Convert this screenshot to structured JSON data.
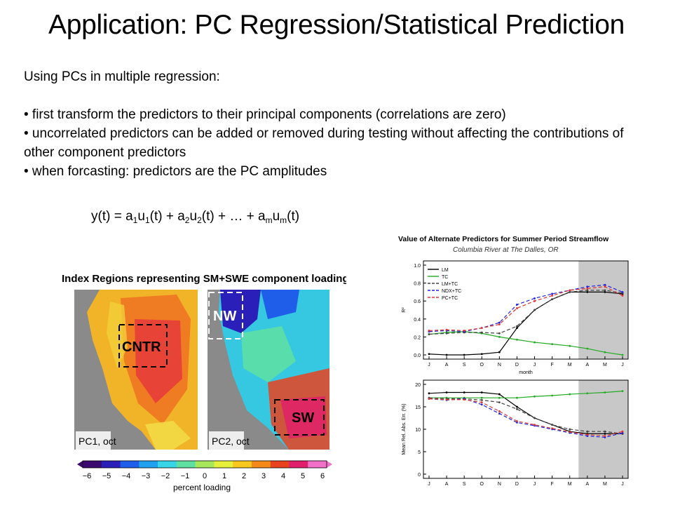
{
  "slide": {
    "title": "Application: PC Regression/Statistical Prediction",
    "intro": "Using PCs in multiple regression:",
    "bullets": [
      "• first transform the predictors to their principal components (correlations are zero)",
      "• uncorrelated predictors can be added or removed during testing without affecting the contributions of other component predictors",
      "• when forcasting: predictors are the PC amplitudes"
    ],
    "equation": {
      "lhs": "y(t) = ",
      "terms": [
        {
          "a": "a",
          "asub": "1",
          "u": "u",
          "usub": "1",
          "tail": "(t) + "
        },
        {
          "a": "a",
          "asub": "2",
          "u": "u",
          "usub": "2",
          "tail": "(t) + … + "
        },
        {
          "a": "a",
          "asub": "m",
          "u": "u",
          "usub": "m",
          "tail": "(t)"
        }
      ]
    }
  },
  "map_figure": {
    "title": "Index Regions representing SM+SWE component loadings",
    "maps": [
      {
        "label": "PC1, oct",
        "region": "CNTR"
      },
      {
        "label": "PC2, oct",
        "regions": [
          "NW",
          "SW"
        ]
      }
    ],
    "colorbar": {
      "ticks": [
        "−6",
        "−5",
        "−4",
        "−3",
        "−2",
        "−1",
        "0",
        "1",
        "2",
        "3",
        "4",
        "5",
        "6"
      ],
      "colors": [
        "#3b0a6e",
        "#2a1fb8",
        "#1f5ee8",
        "#22a0f0",
        "#36d6e6",
        "#5fe0a0",
        "#a6e85a",
        "#e6f03a",
        "#f8c81e",
        "#f58a1a",
        "#e8421e",
        "#e0206a",
        "#f070c8"
      ],
      "label": "percent loading"
    }
  },
  "chart_data": {
    "type": "line",
    "title": "Value of Alternate Predictors for Summer Period Streamflow",
    "subtitle": "Columbia River at The Dalles, OR",
    "x": [
      "J",
      "A",
      "S",
      "O",
      "N",
      "D",
      "J",
      "F",
      "M",
      "A",
      "M",
      "J"
    ],
    "xlabel": "month",
    "shaded_region": [
      "A",
      "J"
    ],
    "legend_position": "top-left",
    "panels": [
      {
        "ylabel": "R²",
        "ylim": [
          0,
          1.0
        ],
        "yticks": [
          "0.0",
          "0.2",
          "0.4",
          "0.6",
          "0.8",
          "1.0"
        ],
        "series": [
          {
            "name": "LM",
            "color": "#000000",
            "dash": "solid",
            "values": [
              0.01,
              0.0,
              0.0,
              0.01,
              0.03,
              0.3,
              0.5,
              0.62,
              0.7,
              0.7,
              0.7,
              0.68
            ]
          },
          {
            "name": "TC",
            "color": "#22aa22",
            "dash": "solid",
            "values": [
              0.23,
              0.25,
              0.26,
              0.24,
              0.2,
              0.17,
              0.14,
              0.12,
              0.1,
              0.07,
              0.03,
              0.0
            ]
          },
          {
            "name": "LM+TC",
            "color": "#444444",
            "dash": "dashed",
            "values": [
              0.23,
              0.24,
              0.25,
              0.25,
              0.24,
              0.32,
              0.5,
              0.62,
              0.7,
              0.72,
              0.72,
              0.69
            ]
          },
          {
            "name": "NDX+TC",
            "color": "#2222dd",
            "dash": "dashed",
            "values": [
              0.26,
              0.27,
              0.26,
              0.3,
              0.36,
              0.56,
              0.63,
              0.68,
              0.72,
              0.76,
              0.78,
              0.7
            ]
          },
          {
            "name": "PC+TC",
            "color": "#dd3333",
            "dash": "dashed",
            "values": [
              0.27,
              0.28,
              0.27,
              0.3,
              0.34,
              0.52,
              0.6,
              0.66,
              0.72,
              0.74,
              0.76,
              0.66
            ]
          }
        ]
      },
      {
        "ylabel": "Mean Rel. Abs. Err. (%)",
        "ylim": [
          0,
          20
        ],
        "yticks": [
          "0",
          "5",
          "10",
          "15",
          "20"
        ],
        "series": [
          {
            "name": "LM",
            "color": "#000000",
            "dash": "solid",
            "values": [
              18,
              18.2,
              18.2,
              18.2,
              17.8,
              15,
              12.5,
              11,
              9.5,
              9,
              9,
              9
            ]
          },
          {
            "name": "TC",
            "color": "#22aa22",
            "dash": "solid",
            "values": [
              17,
              17,
              17,
              17,
              17,
              17,
              17.3,
              17.5,
              17.8,
              18,
              18.2,
              18.5
            ]
          },
          {
            "name": "LM+TC",
            "color": "#444444",
            "dash": "dashed",
            "values": [
              17,
              16.8,
              16.8,
              16.5,
              16,
              14.5,
              12.5,
              11,
              10,
              9.5,
              9.5,
              9
            ]
          },
          {
            "name": "NDX+TC",
            "color": "#2222dd",
            "dash": "dashed",
            "values": [
              16.8,
              16.5,
              16.8,
              15.5,
              13.5,
              11.5,
              10.8,
              10,
              9.2,
              8.5,
              8.2,
              9.2
            ]
          },
          {
            "name": "PC+TC",
            "color": "#dd3333",
            "dash": "dashed",
            "values": [
              16.8,
              16.6,
              16.6,
              16,
              14,
              11.8,
              11,
              10.2,
              9.4,
              8.8,
              8.5,
              9.5
            ]
          }
        ]
      }
    ]
  }
}
